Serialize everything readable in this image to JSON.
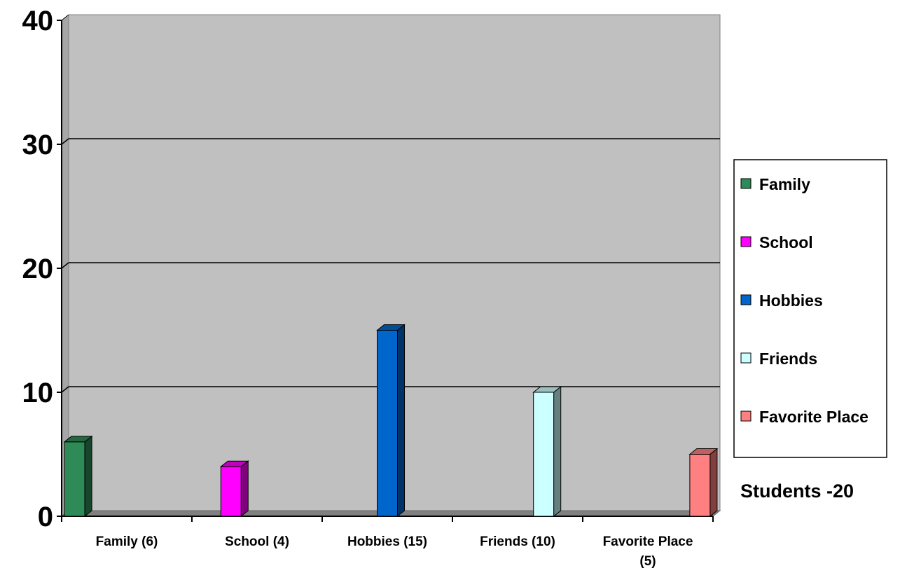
{
  "chart_data": {
    "type": "bar",
    "categories": [
      "Family (6)",
      "School (4)",
      "Hobbies (15)",
      "Friends (10)",
      "Favorite Place (5)"
    ],
    "category_lines": [
      [
        "Family (6)"
      ],
      [
        "School (4)"
      ],
      [
        "Hobbies (15)"
      ],
      [
        "Friends (10)"
      ],
      [
        "Favorite Place",
        "(5)"
      ]
    ],
    "series": [
      {
        "name": "Family",
        "values": [
          6,
          null,
          null,
          null,
          null
        ],
        "color": "#2E8B57"
      },
      {
        "name": "School",
        "values": [
          null,
          4,
          null,
          null,
          null
        ],
        "color": "#FF00FF"
      },
      {
        "name": "Hobbies",
        "values": [
          null,
          null,
          15,
          null,
          null
        ],
        "color": "#0066CC"
      },
      {
        "name": "Friends",
        "values": [
          null,
          null,
          null,
          10,
          null
        ],
        "color": "#CCFFFF"
      },
      {
        "name": "Favorite Place",
        "values": [
          null,
          null,
          null,
          null,
          5
        ],
        "color": "#FF8080"
      }
    ],
    "yticks": [
      "0",
      "10",
      "20",
      "30",
      "40"
    ],
    "ylim": [
      0,
      40
    ],
    "grid": true,
    "legend": "right",
    "title": "",
    "xlabel": "",
    "ylabel": "",
    "plot_background": "#C0C0C0",
    "annotation": "Students -20"
  }
}
